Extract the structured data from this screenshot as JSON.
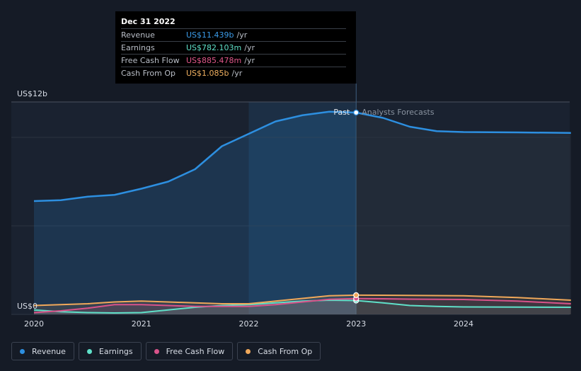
{
  "tooltip": {
    "date": "Dec 31 2022",
    "rows": [
      {
        "label": "Revenue",
        "value": "US$11.439b",
        "unit": "/yr",
        "color": "#3b9be8"
      },
      {
        "label": "Earnings",
        "value": "US$782.103m",
        "unit": "/yr",
        "color": "#5fe0c8"
      },
      {
        "label": "Free Cash Flow",
        "value": "US$885.478m",
        "unit": "/yr",
        "color": "#e0578a"
      },
      {
        "label": "Cash From Op",
        "value": "US$1.085b",
        "unit": "/yr",
        "color": "#f0b060"
      }
    ]
  },
  "legend": [
    {
      "label": "Revenue",
      "color": "#2d8fe0"
    },
    {
      "label": "Earnings",
      "color": "#5fe0c8"
    },
    {
      "label": "Free Cash Flow",
      "color": "#d9538a"
    },
    {
      "label": "Cash From Op",
      "color": "#f0a85a"
    }
  ],
  "chart_data": {
    "type": "area",
    "y_top_label": "US$12b",
    "y_bottom_label": "US$0",
    "ylim": [
      0,
      12
    ],
    "xlim": [
      2020,
      2025
    ],
    "x_ticks": [
      2020,
      2021,
      2022,
      2023,
      2024
    ],
    "past_label": "Past",
    "forecast_label": "Analysts Forecasts",
    "past_end": 2023,
    "highlight_start": 2022,
    "series": [
      {
        "name": "Revenue",
        "color": "#2d8fe0",
        "x": [
          2020,
          2020.25,
          2020.5,
          2020.75,
          2021,
          2021.25,
          2021.5,
          2021.75,
          2022,
          2022.25,
          2022.5,
          2022.75,
          2023,
          2023.25,
          2023.5,
          2023.75,
          2024,
          2024.5,
          2025
        ],
        "values": [
          6.4,
          6.45,
          6.65,
          6.75,
          7.1,
          7.5,
          8.2,
          9.5,
          10.2,
          10.9,
          11.25,
          11.45,
          11.4,
          11.1,
          10.6,
          10.35,
          10.3,
          10.28,
          10.25
        ]
      },
      {
        "name": "Earnings",
        "color": "#5fe0c8",
        "x": [
          2020,
          2020.25,
          2020.5,
          2020.75,
          2021,
          2021.25,
          2021.5,
          2021.75,
          2022,
          2022.25,
          2022.5,
          2022.75,
          2023,
          2023.25,
          2023.5,
          2023.75,
          2024,
          2024.5,
          2025
        ],
        "values": [
          0.25,
          0.15,
          0.1,
          0.08,
          0.1,
          0.25,
          0.4,
          0.5,
          0.55,
          0.65,
          0.75,
          0.8,
          0.78,
          0.65,
          0.5,
          0.45,
          0.42,
          0.41,
          0.4
        ]
      },
      {
        "name": "Free Cash Flow",
        "color": "#d9538a",
        "x": [
          2020,
          2020.25,
          2020.5,
          2020.75,
          2021,
          2021.25,
          2021.5,
          2021.75,
          2022,
          2022.25,
          2022.5,
          2022.75,
          2023,
          2023.25,
          2023.5,
          2023.75,
          2024,
          2024.5,
          2025
        ],
        "values": [
          0.1,
          0.2,
          0.35,
          0.55,
          0.55,
          0.5,
          0.45,
          0.45,
          0.45,
          0.55,
          0.7,
          0.85,
          0.89,
          0.88,
          0.86,
          0.85,
          0.84,
          0.75,
          0.6
        ]
      },
      {
        "name": "Cash From Op",
        "color": "#f0a85a",
        "x": [
          2020,
          2020.25,
          2020.5,
          2020.75,
          2021,
          2021.25,
          2021.5,
          2021.75,
          2022,
          2022.25,
          2022.5,
          2022.75,
          2023,
          2023.25,
          2023.5,
          2023.75,
          2024,
          2024.5,
          2025
        ],
        "values": [
          0.5,
          0.55,
          0.6,
          0.7,
          0.75,
          0.7,
          0.65,
          0.6,
          0.6,
          0.75,
          0.9,
          1.05,
          1.085,
          1.08,
          1.07,
          1.06,
          1.05,
          0.95,
          0.8
        ]
      }
    ]
  }
}
